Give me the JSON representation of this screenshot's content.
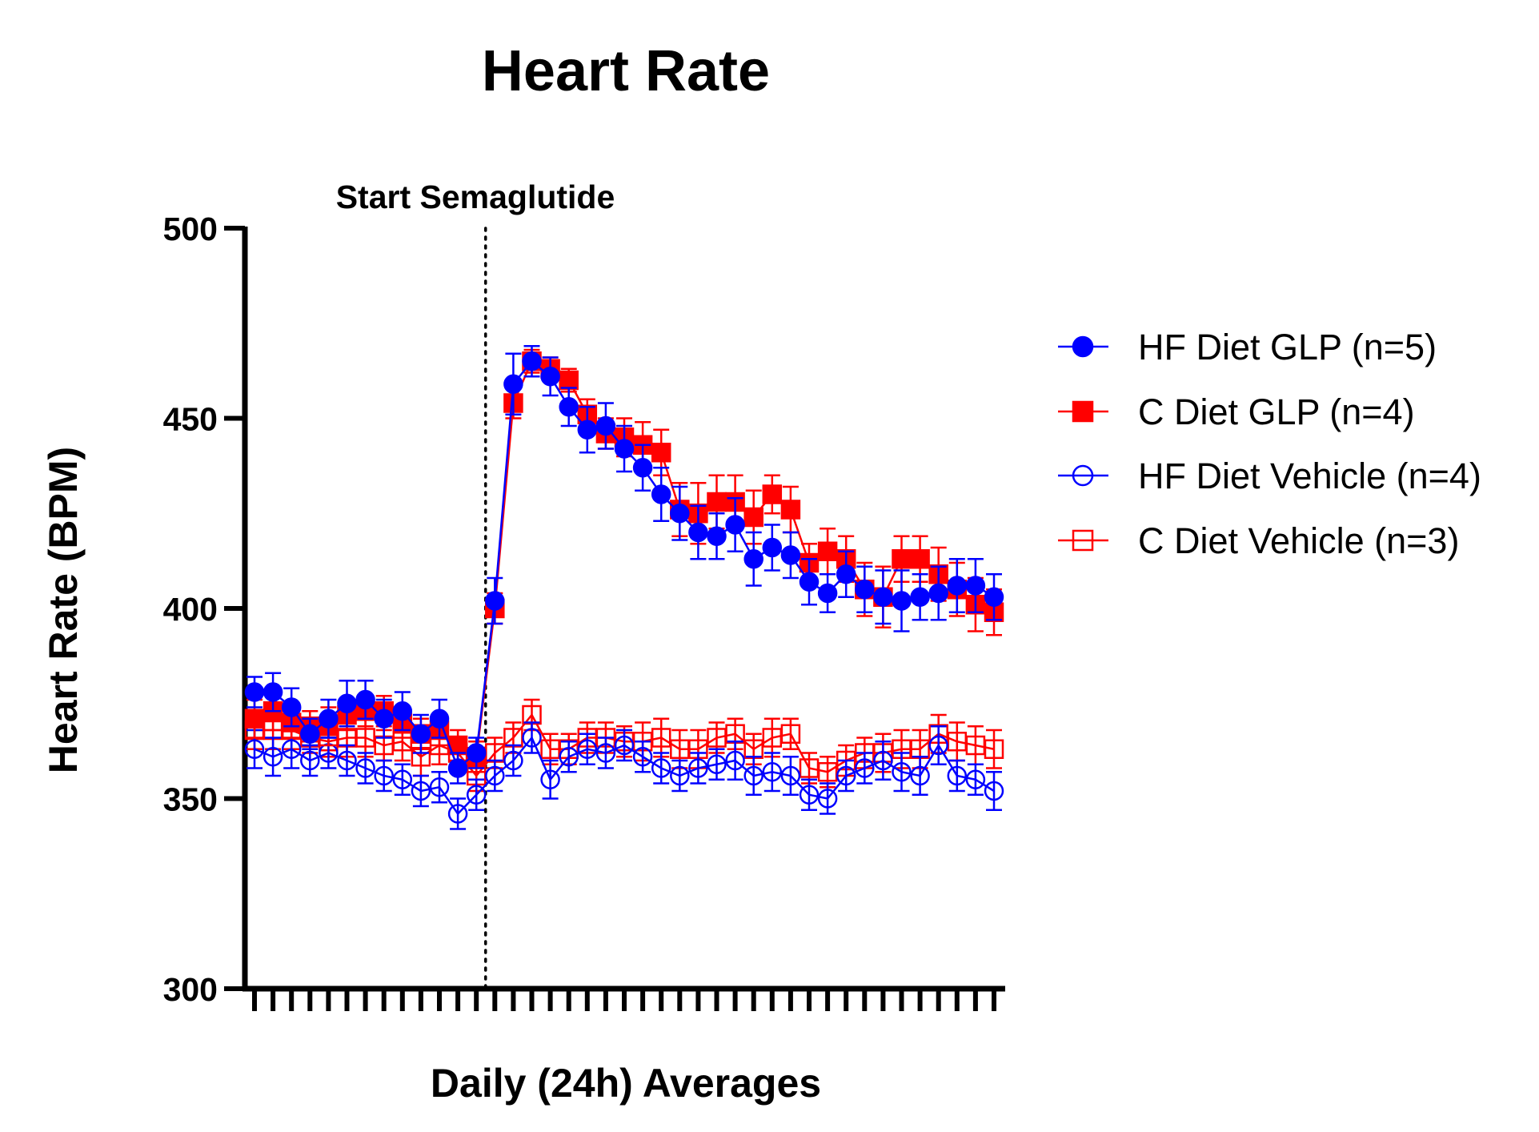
{
  "chart_data": {
    "type": "line",
    "title": "Heart Rate",
    "xlabel": "Daily (24h) Averages",
    "ylabel": "Heart Rate (BPM)",
    "ylim": [
      300,
      500
    ],
    "yticks": [
      "300",
      "350",
      "400",
      "450",
      "500"
    ],
    "x": [
      1,
      2,
      3,
      4,
      5,
      6,
      7,
      8,
      9,
      10,
      11,
      12,
      13,
      14,
      15,
      16,
      17,
      18,
      19,
      20,
      21,
      22,
      23,
      24,
      25,
      26,
      27,
      28,
      29,
      30,
      31,
      32,
      33,
      34,
      35,
      36,
      37,
      38,
      39,
      40,
      41
    ],
    "annotation": {
      "label": "Start Semaglutide",
      "x": 13.5
    },
    "series": [
      {
        "name": "HF Diet GLP (n=5)",
        "color": "#0000ff",
        "marker": "circle",
        "filled": true,
        "values": [
          378,
          378,
          374,
          367,
          371,
          375,
          376,
          371,
          373,
          367,
          371,
          358,
          362,
          402,
          459,
          465,
          461,
          453,
          447,
          448,
          442,
          437,
          430,
          425,
          420,
          419,
          422,
          413,
          416,
          414,
          407,
          404,
          409,
          405,
          403,
          402,
          403,
          404,
          406,
          406,
          403
        ],
        "errors": [
          4,
          5,
          5,
          4,
          5,
          6,
          5,
          5,
          5,
          5,
          5,
          4,
          4,
          6,
          8,
          4,
          5,
          5,
          6,
          6,
          6,
          6,
          7,
          7,
          7,
          6,
          7,
          7,
          6,
          6,
          6,
          5,
          6,
          6,
          7,
          8,
          6,
          7,
          7,
          7,
          6
        ]
      },
      {
        "name": "C Diet GLP (n=4)",
        "color": "#ff0000",
        "marker": "square",
        "filled": true,
        "values": [
          371,
          373,
          370,
          369,
          369,
          372,
          373,
          373,
          370,
          367,
          368,
          364,
          361,
          400,
          454,
          465,
          463,
          460,
          451,
          446,
          445,
          443,
          441,
          426,
          425,
          428,
          428,
          424,
          430,
          426,
          412,
          415,
          413,
          405,
          403,
          413,
          413,
          409,
          405,
          401,
          399
        ],
        "errors": [
          5,
          5,
          4,
          4,
          5,
          4,
          4,
          4,
          4,
          4,
          4,
          4,
          4,
          4,
          4,
          3,
          3,
          3,
          4,
          4,
          5,
          6,
          6,
          7,
          8,
          7,
          7,
          7,
          5,
          6,
          5,
          6,
          6,
          7,
          8,
          6,
          6,
          7,
          7,
          7,
          6
        ]
      },
      {
        "name": "HF Diet Vehicle (n=4)",
        "color": "#0000ff",
        "marker": "circle",
        "filled": false,
        "values": [
          363,
          361,
          363,
          360,
          362,
          360,
          358,
          356,
          355,
          352,
          353,
          346,
          351,
          356,
          360,
          366,
          355,
          361,
          363,
          362,
          364,
          361,
          358,
          356,
          358,
          359,
          360,
          356,
          357,
          356,
          351,
          350,
          356,
          358,
          360,
          357,
          356,
          364,
          356,
          355,
          352
        ],
        "errors": [
          5,
          5,
          5,
          4,
          4,
          4,
          4,
          4,
          4,
          4,
          4,
          4,
          4,
          4,
          4,
          4,
          5,
          4,
          4,
          4,
          4,
          4,
          4,
          4,
          4,
          4,
          5,
          5,
          5,
          5,
          4,
          4,
          4,
          4,
          5,
          5,
          5,
          5,
          4,
          4,
          5
        ]
      },
      {
        "name": "C Diet Vehicle (n=3)",
        "color": "#ff0000",
        "marker": "square",
        "filled": false,
        "values": [
          368,
          368,
          368,
          366,
          365,
          366,
          366,
          364,
          365,
          361,
          364,
          362,
          356,
          362,
          366,
          372,
          363,
          363,
          366,
          366,
          365,
          365,
          366,
          363,
          363,
          366,
          367,
          363,
          366,
          367,
          358,
          357,
          360,
          362,
          362,
          363,
          363,
          367,
          365,
          364,
          363
        ],
        "errors": [
          5,
          5,
          5,
          4,
          4,
          5,
          5,
          4,
          5,
          5,
          5,
          4,
          4,
          4,
          4,
          4,
          4,
          4,
          4,
          4,
          4,
          5,
          5,
          5,
          5,
          4,
          4,
          4,
          5,
          4,
          4,
          4,
          4,
          4,
          5,
          5,
          5,
          5,
          5,
          5,
          5
        ]
      }
    ],
    "legend": {
      "placement": "right"
    }
  }
}
